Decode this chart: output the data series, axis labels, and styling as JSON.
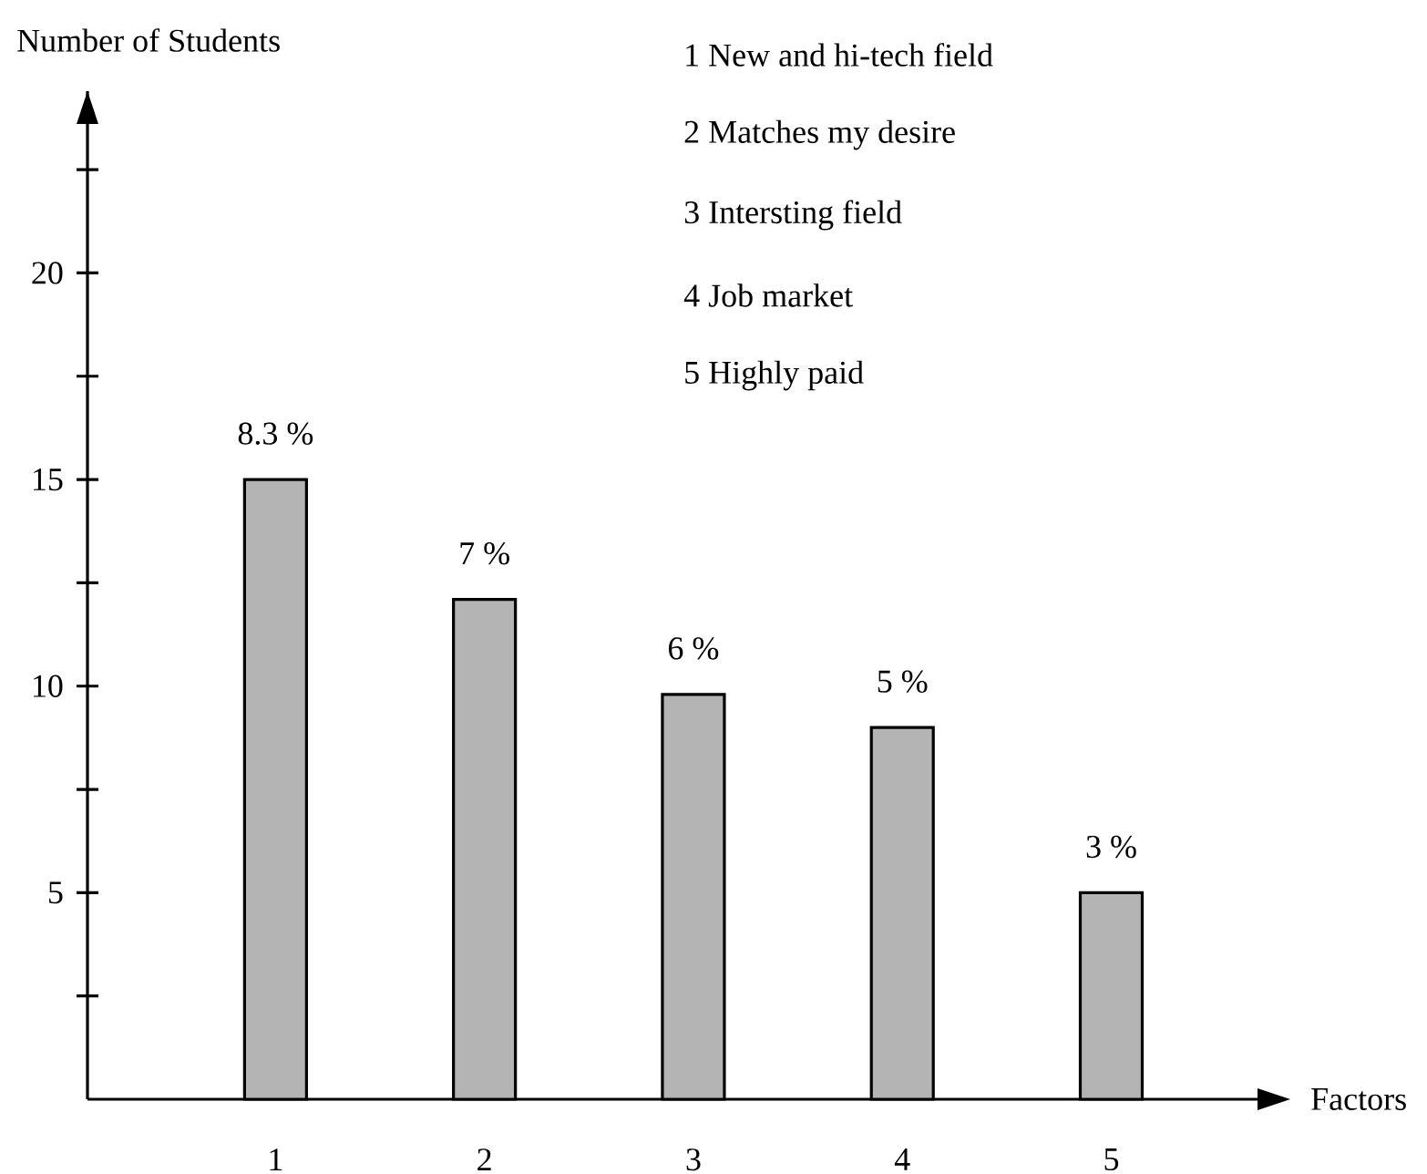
{
  "chart_data": {
    "type": "bar",
    "xlabel": "Factors",
    "ylabel": "Number of Students",
    "categories": [
      "1",
      "2",
      "3",
      "4",
      "5"
    ],
    "values": [
      15,
      12.1,
      9.8,
      9,
      5
    ],
    "color": "#b4b4b4",
    "ylim": [
      0,
      24.4
    ],
    "yticks": [
      {
        "value": 2.5,
        "label": null
      },
      5,
      {
        "value": 7.5,
        "label": null
      },
      10,
      {
        "value": 12.5,
        "label": null
      },
      15,
      {
        "value": 17.5,
        "label": null
      },
      20,
      {
        "value": 22.5,
        "label": null
      }
    ],
    "annotations": [
      {
        "text": "8.3 %",
        "x": "1",
        "y": 15
      },
      {
        "text": "7 %",
        "x": "2",
        "y": 12.1
      },
      {
        "text": "6 %",
        "x": "3",
        "y": 9.8
      },
      {
        "text": "5 %",
        "x": "4",
        "y": 9
      },
      {
        "text": "3 %",
        "x": "5",
        "y": 5
      },
      "1   New and hi-tech field",
      "2   Matches my desire",
      "3   Intersting field",
      "4   Job market",
      "5   Highly paid"
    ],
    "grid": false
  }
}
